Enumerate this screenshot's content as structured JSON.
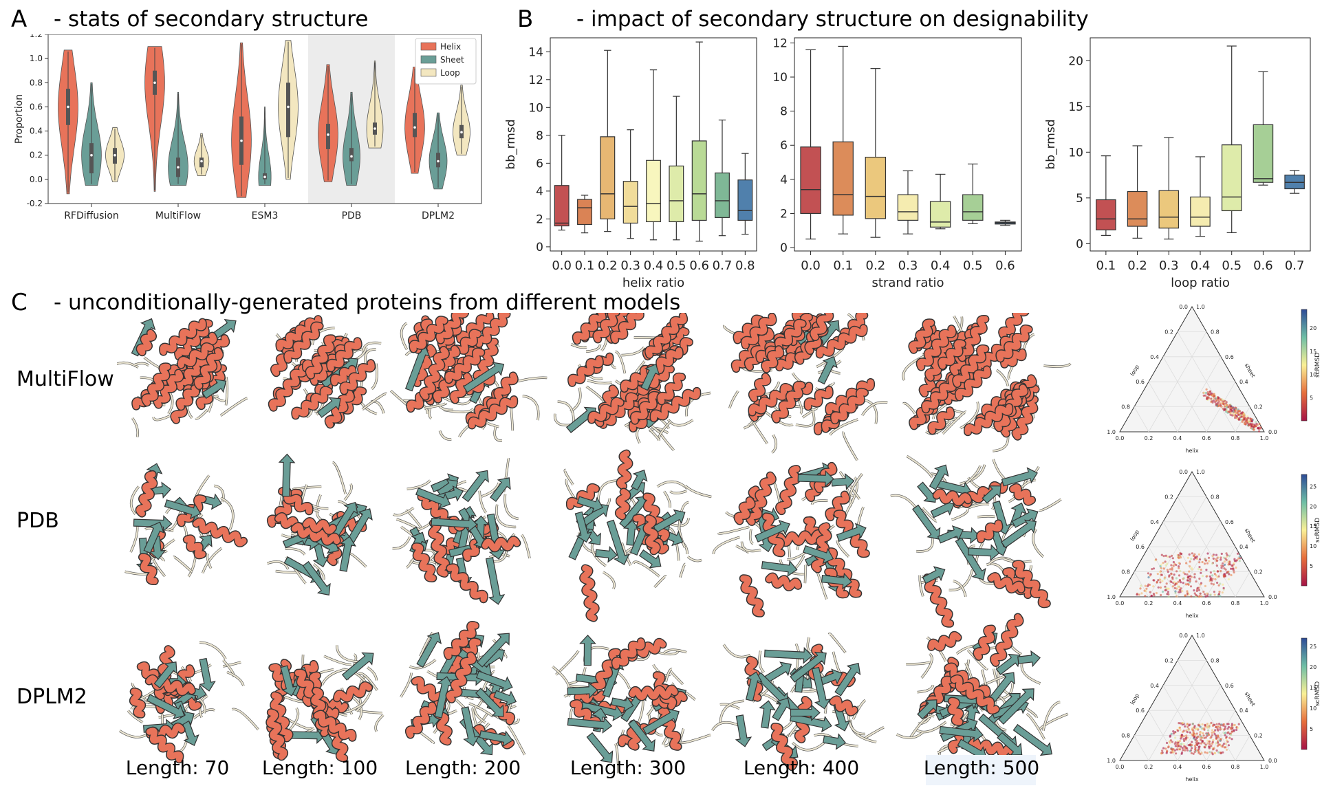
{
  "panels": {
    "a_letter": "A",
    "a_title": "- stats of secondary structure",
    "b_letter": "B",
    "b_title": "- impact of secondary structure on designability",
    "c_letter": "C",
    "c_title": "- unconditionally-generated proteins from different models"
  },
  "rows": [
    "MultiFlow",
    "PDB",
    "DPLM2"
  ],
  "lengths": [
    "Length: 70",
    "Length: 100",
    "Length: 200",
    "Length: 300",
    "Length: 400",
    "Length: 500"
  ],
  "colors": {
    "helix": "#e8735a",
    "sheet": "#6a9e97",
    "loop": "#f3e7c0"
  },
  "chart_data": [
    {
      "type": "violin",
      "id": "violin",
      "ylabel": "Proportion",
      "ylim": [
        -0.2,
        1.2
      ],
      "yticks": [
        "-0.2",
        "0.0",
        "0.2",
        "0.4",
        "0.6",
        "0.8",
        "1.0",
        "1.2"
      ],
      "categories": [
        "RFDiffusion",
        "MultiFlow",
        "ESM3",
        "PDB",
        "DPLM2"
      ],
      "legend": [
        "Helix",
        "Sheet",
        "Loop"
      ],
      "highlight_category": "PDB",
      "series": [
        {
          "name": "Helix",
          "medians": [
            0.6,
            0.8,
            0.32,
            0.37,
            0.43
          ],
          "q1": [
            0.45,
            0.7,
            0.12,
            0.25,
            0.35
          ],
          "q3": [
            0.75,
            0.9,
            0.52,
            0.46,
            0.55
          ],
          "min": [
            -0.12,
            -0.1,
            -0.15,
            -0.02,
            0.05
          ],
          "max": [
            1.07,
            1.1,
            1.13,
            0.95,
            0.93
          ]
        },
        {
          "name": "Sheet",
          "medians": [
            0.2,
            0.1,
            0.02,
            0.19,
            0.15
          ],
          "q1": [
            0.05,
            0.02,
            0.0,
            0.15,
            0.1
          ],
          "q3": [
            0.3,
            0.18,
            0.05,
            0.26,
            0.22
          ],
          "min": [
            -0.05,
            -0.05,
            -0.05,
            -0.05,
            -0.08
          ],
          "max": [
            0.8,
            0.72,
            0.6,
            0.72,
            0.55
          ]
        },
        {
          "name": "Loop",
          "medians": [
            0.2,
            0.15,
            0.6,
            0.42,
            0.39
          ],
          "q1": [
            0.13,
            0.1,
            0.35,
            0.37,
            0.34
          ],
          "q3": [
            0.26,
            0.18,
            0.8,
            0.47,
            0.45
          ],
          "min": [
            -0.02,
            0.03,
            0.0,
            0.26,
            0.2
          ],
          "max": [
            0.43,
            0.38,
            1.15,
            0.98,
            0.78
          ]
        }
      ]
    },
    {
      "type": "box",
      "id": "box-helix",
      "xlabel": "helix ratio",
      "ylabel": "bb_rmsd",
      "ylim": [
        -0.3,
        15
      ],
      "yticks": [
        "0",
        "2",
        "4",
        "6",
        "8",
        "10",
        "12",
        "14"
      ],
      "categories": [
        "0.0",
        "0.1",
        "0.2",
        "0.3",
        "0.4",
        "0.5",
        "0.6",
        "0.7",
        "0.8"
      ],
      "boxes": [
        {
          "min": 1.2,
          "q1": 1.5,
          "median": 1.7,
          "q3": 4.4,
          "max": 8.0
        },
        {
          "min": 1.0,
          "q1": 1.6,
          "median": 2.8,
          "q3": 3.4,
          "max": 3.7
        },
        {
          "min": 1.1,
          "q1": 2.0,
          "median": 3.8,
          "q3": 7.9,
          "max": 14.1
        },
        {
          "min": 0.6,
          "q1": 1.7,
          "median": 2.9,
          "q3": 4.7,
          "max": 8.4
        },
        {
          "min": 0.5,
          "q1": 1.8,
          "median": 3.1,
          "q3": 6.2,
          "max": 12.7
        },
        {
          "min": 0.5,
          "q1": 1.8,
          "median": 3.3,
          "q3": 5.8,
          "max": 10.8
        },
        {
          "min": 0.4,
          "q1": 1.9,
          "median": 3.8,
          "q3": 7.6,
          "max": 14.7
        },
        {
          "min": 0.8,
          "q1": 2.1,
          "median": 3.3,
          "q3": 5.3,
          "max": 9.1
        },
        {
          "min": 0.9,
          "q1": 1.9,
          "median": 2.6,
          "q3": 4.8,
          "max": 6.7
        }
      ]
    },
    {
      "type": "box",
      "id": "box-strand",
      "xlabel": "strand ratio",
      "ylabel": "bb_rmsd",
      "ylim": [
        -0.2,
        12.3
      ],
      "yticks": [
        "0",
        "2",
        "4",
        "6",
        "8",
        "10",
        "12"
      ],
      "categories": [
        "0.0",
        "0.1",
        "0.2",
        "0.3",
        "0.4",
        "0.5",
        "0.6"
      ],
      "boxes": [
        {
          "min": 0.5,
          "q1": 2.0,
          "median": 3.4,
          "q3": 5.9,
          "max": 11.6
        },
        {
          "min": 0.8,
          "q1": 1.9,
          "median": 3.1,
          "q3": 6.2,
          "max": 11.8
        },
        {
          "min": 0.6,
          "q1": 1.7,
          "median": 3.0,
          "q3": 5.3,
          "max": 10.5
        },
        {
          "min": 0.8,
          "q1": 1.6,
          "median": 2.1,
          "q3": 3.1,
          "max": 4.5
        },
        {
          "min": 1.1,
          "q1": 1.2,
          "median": 1.5,
          "q3": 2.7,
          "max": 4.3
        },
        {
          "min": 1.4,
          "q1": 1.6,
          "median": 2.1,
          "q3": 3.1,
          "max": 4.9
        },
        {
          "min": 1.3,
          "q1": 1.38,
          "median": 1.45,
          "q3": 1.5,
          "max": 1.6
        }
      ]
    },
    {
      "type": "box",
      "id": "box-loop",
      "xlabel": "loop ratio",
      "ylabel": "bb_rmsd",
      "ylim": [
        -0.8,
        22.5
      ],
      "yticks": [
        "0",
        "5",
        "10",
        "15",
        "20"
      ],
      "categories": [
        "0.1",
        "0.2",
        "0.3",
        "0.4",
        "0.5",
        "0.6",
        "0.7"
      ],
      "boxes": [
        {
          "min": 0.9,
          "q1": 1.5,
          "median": 2.7,
          "q3": 4.8,
          "max": 9.6
        },
        {
          "min": 0.6,
          "q1": 1.9,
          "median": 2.7,
          "q3": 5.7,
          "max": 10.7
        },
        {
          "min": 0.5,
          "q1": 1.7,
          "median": 2.9,
          "q3": 5.8,
          "max": 11.6
        },
        {
          "min": 0.8,
          "q1": 1.9,
          "median": 2.9,
          "q3": 5.1,
          "max": 9.5
        },
        {
          "min": 1.2,
          "q1": 3.6,
          "median": 5.1,
          "q3": 10.8,
          "max": 21.6
        },
        {
          "min": 6.4,
          "q1": 6.7,
          "median": 7.1,
          "q3": 13.0,
          "max": 18.8
        },
        {
          "min": 5.5,
          "q1": 6.0,
          "median": 6.7,
          "q3": 7.5,
          "max": 8.0
        }
      ]
    },
    {
      "type": "scatter",
      "id": "ternary",
      "ternary_labels": {
        "bottom": "helix",
        "left": "loop",
        "right": "sheet"
      },
      "ticks": [
        "0.0",
        "0.2",
        "0.4",
        "0.6",
        "0.8",
        "1.0"
      ],
      "colorbar_label": "scRMSD",
      "plots": [
        {
          "row": "MultiFlow",
          "colorbar_ticks": [
            "5",
            "10",
            "15",
            "20"
          ],
          "cbar_max": 24
        },
        {
          "row": "PDB",
          "colorbar_ticks": [
            "5",
            "10",
            "15",
            "20",
            "25"
          ],
          "cbar_max": 28
        },
        {
          "row": "DPLM2",
          "colorbar_ticks": [
            "5",
            "10",
            "15",
            "20",
            "25"
          ],
          "cbar_max": 27
        }
      ]
    }
  ]
}
